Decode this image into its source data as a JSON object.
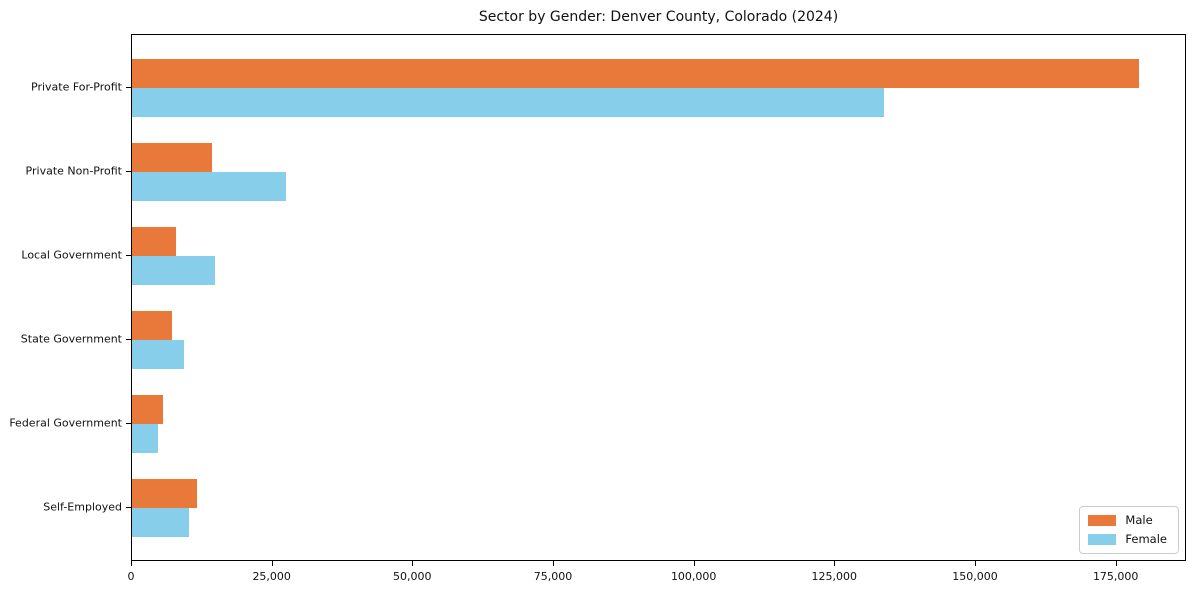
{
  "figure": {
    "title": "Sector by Gender: Denver County, Colorado (2024)"
  },
  "chart_data": {
    "type": "bar",
    "orientation": "horizontal",
    "title": "Sector by Gender: Denver County, Colorado (2024)",
    "xlabel": "",
    "ylabel": "",
    "categories": [
      "Private For-Profit",
      "Private Non-Profit",
      "Local Government",
      "State Government",
      "Federal Government",
      "Self-Employed"
    ],
    "series": [
      {
        "name": "Male",
        "color": "#e8793a",
        "values": [
          179000,
          14200,
          7800,
          7100,
          5500,
          11500
        ]
      },
      {
        "name": "Female",
        "color": "#87ceeb",
        "values": [
          133600,
          27300,
          14700,
          9200,
          4600,
          10100
        ]
      }
    ],
    "xlim": [
      0,
      187500
    ],
    "xticks": [
      0,
      25000,
      50000,
      75000,
      100000,
      125000,
      150000,
      175000
    ],
    "grid": false,
    "legend_position": "lower right",
    "legend_labels": [
      "Male",
      "Female"
    ]
  }
}
